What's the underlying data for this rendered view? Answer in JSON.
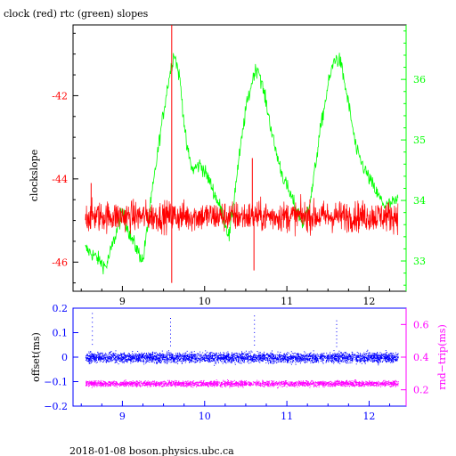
{
  "title": "clock (red) rtc (green) slopes",
  "footer": "2018-01-08  boson.physics.ubc.ca",
  "colors": {
    "clock": "#ff0000",
    "rtc": "#00ff00",
    "offset": "#0000ff",
    "rndtrip": "#ff00ff",
    "axis": "#000000"
  },
  "chart_data": [
    {
      "type": "line",
      "ylabel": "clockslope",
      "y2label": "",
      "xlim": [
        8.4,
        12.45
      ],
      "ylim": [
        -46.7,
        -40.3
      ],
      "y2lim": [
        32.5,
        36.9
      ],
      "xticks": [
        9,
        10,
        11,
        12
      ],
      "xtick_labels": [
        "9",
        "10",
        "11",
        "12"
      ],
      "yticks": [
        -42,
        -44,
        -46
      ],
      "ytick_labels": [
        "-42",
        "-44",
        "-46"
      ],
      "y2ticks": [
        33,
        34,
        35,
        36
      ],
      "y2tick_labels": [
        "33",
        "34",
        "35",
        "36"
      ],
      "series": [
        {
          "name": "clock",
          "axis": "left",
          "color": "#ff0000",
          "mean": -44.9,
          "noise": 0.35,
          "x": [
            8.55,
            12.35
          ],
          "spikes": [
            [
              8.62,
              -44.1
            ],
            [
              9.6,
              -40.3
            ],
            [
              9.6,
              -46.5
            ],
            [
              10.58,
              -43.5
            ],
            [
              10.6,
              -46.2
            ]
          ]
        },
        {
          "name": "rtc",
          "axis": "right",
          "color": "#00ff00",
          "noise": 0.12,
          "x": [
            8.55,
            8.65,
            8.8,
            9.0,
            9.1,
            9.25,
            9.35,
            9.45,
            9.55,
            9.63,
            9.7,
            9.78,
            9.85,
            9.95,
            10.05,
            10.2,
            10.3,
            10.4,
            10.5,
            10.6,
            10.65,
            10.75,
            10.85,
            10.95,
            11.1,
            11.2,
            11.3,
            11.4,
            11.5,
            11.58,
            11.65,
            11.75,
            11.85,
            11.95,
            12.1,
            12.2,
            12.35
          ],
          "y": [
            33.2,
            33.1,
            32.9,
            33.8,
            33.4,
            33.0,
            34.0,
            35.0,
            35.9,
            36.45,
            36.0,
            34.9,
            34.5,
            34.6,
            34.35,
            33.85,
            33.4,
            34.5,
            35.5,
            36.1,
            36.2,
            35.6,
            34.9,
            34.4,
            33.9,
            33.6,
            34.1,
            35.1,
            35.9,
            36.35,
            36.3,
            35.6,
            34.8,
            34.5,
            34.1,
            33.9,
            34.0
          ]
        }
      ]
    },
    {
      "type": "scatter",
      "ylabel": "offset(ms)",
      "y2label": "rnd−trip(ms)",
      "xlim": [
        8.4,
        12.45
      ],
      "ylim": [
        -0.2,
        0.2
      ],
      "y2lim": [
        0.1,
        0.7
      ],
      "xticks": [
        9,
        10,
        11,
        12
      ],
      "xtick_labels": [
        "9",
        "10",
        "11",
        "12"
      ],
      "yticks": [
        0.2,
        0.1,
        0,
        -0.1,
        -0.2
      ],
      "ytick_labels": [
        "0.2",
        "0.1",
        "0",
        "−0.1",
        "−0.2"
      ],
      "y2ticks": [
        0.6,
        0.4,
        0.2
      ],
      "y2tick_labels": [
        "0.6",
        "0.4",
        "0.2"
      ],
      "series": [
        {
          "name": "offset",
          "axis": "left",
          "color": "#0000ff",
          "x": [
            8.55,
            12.35
          ],
          "center": 0.0,
          "spread": 0.035,
          "outliers": [
            [
              8.63,
              0.18
            ],
            [
              9.58,
              0.16
            ],
            [
              10.6,
              0.17
            ],
            [
              11.6,
              0.15
            ]
          ]
        },
        {
          "name": "rndtrip",
          "axis": "right",
          "color": "#ff00ff",
          "x": [
            8.55,
            12.35
          ],
          "center": 0.24,
          "spread": 0.03
        }
      ]
    }
  ]
}
